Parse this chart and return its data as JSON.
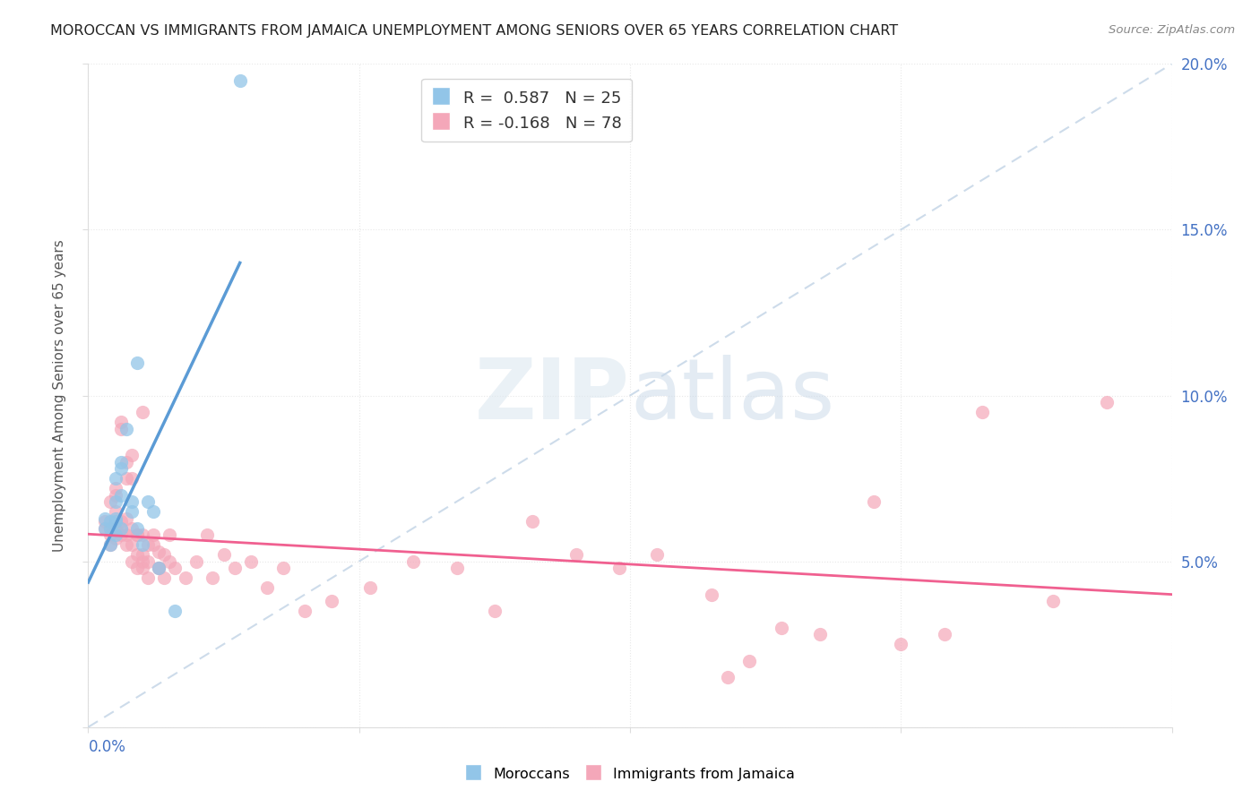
{
  "title": "MOROCCAN VS IMMIGRANTS FROM JAMAICA UNEMPLOYMENT AMONG SENIORS OVER 65 YEARS CORRELATION CHART",
  "source": "Source: ZipAtlas.com",
  "ylabel": "Unemployment Among Seniors over 65 years",
  "watermark": "ZIPatlas",
  "legend_blue_r": "0.587",
  "legend_blue_n": "25",
  "legend_pink_r": "-0.168",
  "legend_pink_n": "78",
  "blue_color": "#92c5e8",
  "pink_color": "#f4a7b9",
  "blue_line_color": "#5b9bd5",
  "pink_line_color": "#f06090",
  "dashed_line_color": "#c8d8e8",
  "right_tick_color": "#4472c4",
  "xlim": [
    0.0,
    0.2
  ],
  "ylim": [
    0.0,
    0.2
  ],
  "moroccan_points": [
    [
      0.003,
      0.06
    ],
    [
      0.003,
      0.063
    ],
    [
      0.004,
      0.055
    ],
    [
      0.004,
      0.06
    ],
    [
      0.004,
      0.062
    ],
    [
      0.005,
      0.068
    ],
    [
      0.005,
      0.058
    ],
    [
      0.005,
      0.062
    ],
    [
      0.005,
      0.063
    ],
    [
      0.005,
      0.075
    ],
    [
      0.006,
      0.08
    ],
    [
      0.006,
      0.07
    ],
    [
      0.006,
      0.078
    ],
    [
      0.006,
      0.06
    ],
    [
      0.007,
      0.09
    ],
    [
      0.008,
      0.065
    ],
    [
      0.008,
      0.068
    ],
    [
      0.009,
      0.11
    ],
    [
      0.009,
      0.06
    ],
    [
      0.01,
      0.055
    ],
    [
      0.011,
      0.068
    ],
    [
      0.012,
      0.065
    ],
    [
      0.013,
      0.048
    ],
    [
      0.016,
      0.035
    ],
    [
      0.028,
      0.195
    ]
  ],
  "jamaica_points": [
    [
      0.003,
      0.06
    ],
    [
      0.003,
      0.062
    ],
    [
      0.004,
      0.055
    ],
    [
      0.004,
      0.06
    ],
    [
      0.004,
      0.058
    ],
    [
      0.004,
      0.068
    ],
    [
      0.005,
      0.072
    ],
    [
      0.005,
      0.06
    ],
    [
      0.005,
      0.065
    ],
    [
      0.005,
      0.07
    ],
    [
      0.005,
      0.057
    ],
    [
      0.006,
      0.062
    ],
    [
      0.006,
      0.09
    ],
    [
      0.006,
      0.092
    ],
    [
      0.006,
      0.058
    ],
    [
      0.006,
      0.06
    ],
    [
      0.007,
      0.075
    ],
    [
      0.007,
      0.08
    ],
    [
      0.007,
      0.058
    ],
    [
      0.007,
      0.063
    ],
    [
      0.007,
      0.055
    ],
    [
      0.008,
      0.06
    ],
    [
      0.008,
      0.075
    ],
    [
      0.008,
      0.082
    ],
    [
      0.008,
      0.05
    ],
    [
      0.008,
      0.055
    ],
    [
      0.009,
      0.058
    ],
    [
      0.009,
      0.048
    ],
    [
      0.009,
      0.052
    ],
    [
      0.009,
      0.058
    ],
    [
      0.01,
      0.05
    ],
    [
      0.01,
      0.058
    ],
    [
      0.01,
      0.095
    ],
    [
      0.01,
      0.048
    ],
    [
      0.01,
      0.052
    ],
    [
      0.011,
      0.045
    ],
    [
      0.011,
      0.05
    ],
    [
      0.011,
      0.055
    ],
    [
      0.012,
      0.058
    ],
    [
      0.012,
      0.055
    ],
    [
      0.013,
      0.048
    ],
    [
      0.013,
      0.053
    ],
    [
      0.013,
      0.048
    ],
    [
      0.014,
      0.052
    ],
    [
      0.014,
      0.045
    ],
    [
      0.015,
      0.05
    ],
    [
      0.015,
      0.058
    ],
    [
      0.016,
      0.048
    ],
    [
      0.018,
      0.045
    ],
    [
      0.02,
      0.05
    ],
    [
      0.022,
      0.058
    ],
    [
      0.023,
      0.045
    ],
    [
      0.025,
      0.052
    ],
    [
      0.027,
      0.048
    ],
    [
      0.03,
      0.05
    ],
    [
      0.033,
      0.042
    ],
    [
      0.036,
      0.048
    ],
    [
      0.04,
      0.035
    ],
    [
      0.045,
      0.038
    ],
    [
      0.052,
      0.042
    ],
    [
      0.06,
      0.05
    ],
    [
      0.068,
      0.048
    ],
    [
      0.075,
      0.035
    ],
    [
      0.082,
      0.062
    ],
    [
      0.09,
      0.052
    ],
    [
      0.098,
      0.048
    ],
    [
      0.105,
      0.052
    ],
    [
      0.115,
      0.04
    ],
    [
      0.118,
      0.015
    ],
    [
      0.122,
      0.02
    ],
    [
      0.128,
      0.03
    ],
    [
      0.135,
      0.028
    ],
    [
      0.145,
      0.068
    ],
    [
      0.15,
      0.025
    ],
    [
      0.158,
      0.028
    ],
    [
      0.165,
      0.095
    ],
    [
      0.178,
      0.038
    ],
    [
      0.188,
      0.098
    ]
  ]
}
